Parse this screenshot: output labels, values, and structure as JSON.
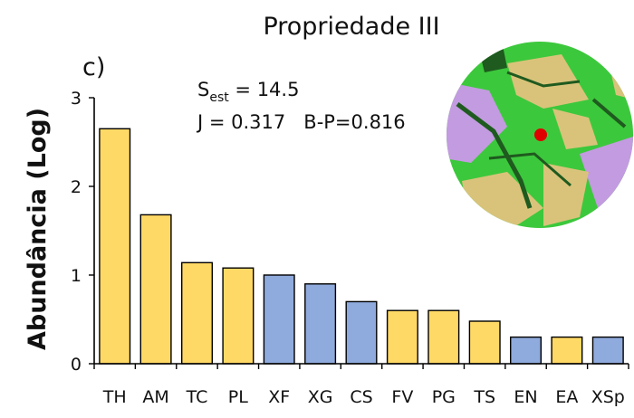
{
  "chart_data": {
    "type": "bar",
    "title": "Propriedade III",
    "panel_label": "c)",
    "ylabel": "Abundância (Log)",
    "xlabel": "",
    "ylim": [
      0,
      3
    ],
    "yticks": [
      "0",
      "1",
      "2",
      "3"
    ],
    "categories": [
      "TH",
      "AM",
      "TC",
      "PL",
      "XF",
      "XG",
      "CS",
      "FV",
      "PG",
      "TS",
      "EN",
      "EA",
      "XSp"
    ],
    "values": [
      2.65,
      1.68,
      1.14,
      1.08,
      1.0,
      0.9,
      0.7,
      0.6,
      0.6,
      0.48,
      0.3,
      0.3,
      0.3
    ],
    "bar_colors": [
      "#FFD966",
      "#FFD966",
      "#FFD966",
      "#FFD966",
      "#8FAADC",
      "#8FAADC",
      "#8FAADC",
      "#FFD966",
      "#FFD966",
      "#FFD966",
      "#8FAADC",
      "#FFD966",
      "#8FAADC"
    ],
    "annotations": {
      "s_main": "S",
      "s_sub": "est",
      "s_value": " = 14.5",
      "line2": "J = 0.317   B-P=0.816"
    },
    "grid": false
  },
  "colors": {
    "yellow": "#FFD966",
    "blue": "#8FAADC",
    "map_green": "#3cc83c",
    "map_purple": "#c39be0",
    "map_tan": "#d9c37a",
    "map_dark": "#1f5a1f",
    "map_red": "#e00000"
  }
}
